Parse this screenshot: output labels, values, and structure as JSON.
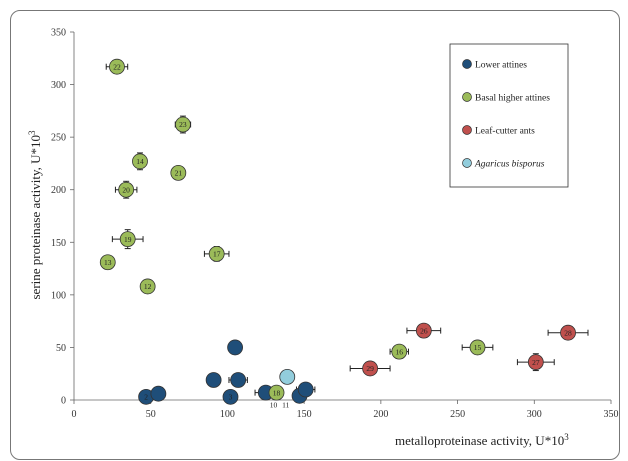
{
  "chart_data": {
    "type": "scatter",
    "xlabel": "metalloproteinase activity, U*10",
    "xlabel_sup": "3",
    "ylabel": "serine proteinase activity, U*10",
    "ylabel_sup": "3",
    "xlim": [
      0,
      350
    ],
    "ylim": [
      0,
      350
    ],
    "xticks": [
      "0",
      "50",
      "100",
      "150",
      "200",
      "250",
      "300",
      "350"
    ],
    "yticks": [
      "0",
      "50",
      "100",
      "150",
      "200",
      "250",
      "300",
      "350"
    ],
    "grid": false,
    "legend_position": "top-right",
    "series": [
      {
        "name": "Lower attines",
        "color": "#1f4e79",
        "points": [
          {
            "label": "2",
            "x": 47,
            "y": 3,
            "xerr": 0,
            "yerr": 0
          },
          {
            "label": "",
            "x": 55,
            "y": 6,
            "xerr": 0,
            "yerr": 0
          },
          {
            "label": "",
            "x": 91,
            "y": 19,
            "xerr": 0,
            "yerr": 0
          },
          {
            "label": "3",
            "x": 102,
            "y": 3,
            "xerr": 0,
            "yerr": 0
          },
          {
            "label": "",
            "x": 107,
            "y": 19,
            "xerr": 6,
            "yerr": 0
          },
          {
            "label": "",
            "x": 105,
            "y": 50,
            "xerr": 0,
            "yerr": 0
          },
          {
            "label": "",
            "x": 125,
            "y": 7,
            "xerr": 7,
            "yerr": 0
          },
          {
            "label": "",
            "x": 147,
            "y": 4,
            "xerr": 0,
            "yerr": 0
          },
          {
            "label": "",
            "x": 151,
            "y": 10,
            "xerr": 6,
            "yerr": 0
          }
        ]
      },
      {
        "name": "Basal higher attines",
        "color": "#9bbb59",
        "points": [
          {
            "label": "22",
            "x": 28,
            "y": 317,
            "xerr": 7,
            "yerr": 5
          },
          {
            "label": "23",
            "x": 71,
            "y": 262,
            "xerr": 5,
            "yerr": 8
          },
          {
            "label": "14",
            "x": 43,
            "y": 227,
            "xerr": 0,
            "yerr": 8
          },
          {
            "label": "21",
            "x": 68,
            "y": 216,
            "xerr": 4,
            "yerr": 6
          },
          {
            "label": "20",
            "x": 34,
            "y": 200,
            "xerr": 7,
            "yerr": 8
          },
          {
            "label": "19",
            "x": 35,
            "y": 153,
            "xerr": 10,
            "yerr": 9
          },
          {
            "label": "17",
            "x": 93,
            "y": 139,
            "xerr": 8,
            "yerr": 7
          },
          {
            "label": "13",
            "x": 22,
            "y": 131,
            "xerr": 0,
            "yerr": 0
          },
          {
            "label": "12",
            "x": 48,
            "y": 108,
            "xerr": 0,
            "yerr": 0
          },
          {
            "label": "18",
            "x": 132,
            "y": 7,
            "xerr": 0,
            "yerr": 0
          },
          {
            "label": "16",
            "x": 212,
            "y": 46,
            "xerr": 6,
            "yerr": 0
          },
          {
            "label": "15",
            "x": 263,
            "y": 50,
            "xerr": 10,
            "yerr": 0
          }
        ]
      },
      {
        "name": "Leaf-cutter ants",
        "color": "#c0504d",
        "points": [
          {
            "label": "29",
            "x": 193,
            "y": 30,
            "xerr": 13,
            "yerr": 0
          },
          {
            "label": "26",
            "x": 228,
            "y": 66,
            "xerr": 11,
            "yerr": 0
          },
          {
            "label": "27",
            "x": 301,
            "y": 36,
            "xerr": 12,
            "yerr": 8
          },
          {
            "label": "28",
            "x": 322,
            "y": 64,
            "xerr": 13,
            "yerr": 0
          }
        ]
      },
      {
        "name": "Agaricus bisporus",
        "color": "#92cddc",
        "italic": true,
        "points": [
          {
            "label": "",
            "x": 139,
            "y": 22,
            "xerr": 0,
            "yerr": 0
          }
        ]
      }
    ],
    "annotations": [
      {
        "text": "10",
        "x": 130,
        "y": -5
      },
      {
        "text": "11",
        "x": 138,
        "y": -5
      }
    ]
  }
}
